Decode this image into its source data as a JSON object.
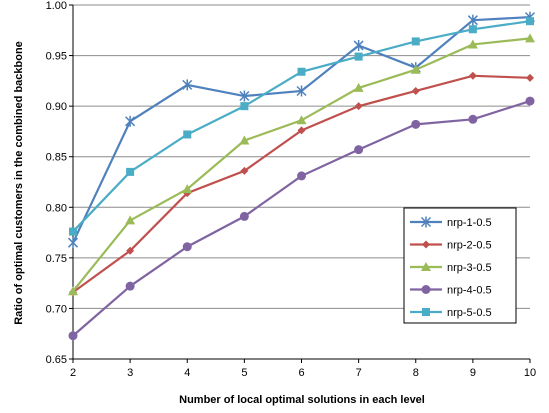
{
  "chart_data": {
    "type": "line",
    "title": "",
    "xlabel": "Number of local optimal solutions in each level",
    "ylabel": "Ratio of optimal customers in the combined backbone",
    "x": [
      2,
      3,
      4,
      5,
      6,
      7,
      8,
      9,
      10
    ],
    "x_tick_labels": [
      "2",
      "3",
      "4",
      "5",
      "6",
      "7",
      "8",
      "9",
      "10"
    ],
    "xlim": [
      2,
      10
    ],
    "ylim": [
      0.65,
      1.0
    ],
    "y_ticks": [
      0.65,
      0.7,
      0.75,
      0.8,
      0.85,
      0.9,
      0.95,
      1.0
    ],
    "y_tick_labels": [
      "0.65",
      "0.70",
      "0.75",
      "0.80",
      "0.85",
      "0.90",
      "0.95",
      "1.00"
    ],
    "grid": "horizontal",
    "legend_position": "bottom-right",
    "series": [
      {
        "name": "nrp-1-0.5",
        "color": "#4F81BD",
        "marker": "star",
        "values": [
          0.765,
          0.885,
          0.921,
          0.91,
          0.915,
          0.96,
          0.938,
          0.985,
          0.988
        ]
      },
      {
        "name": "nrp-2-0.5",
        "color": "#C0504D",
        "marker": "diamond",
        "values": [
          0.716,
          0.757,
          0.814,
          0.836,
          0.876,
          0.9,
          0.915,
          0.93,
          0.928
        ]
      },
      {
        "name": "nrp-3-0.5",
        "color": "#9BBB59",
        "marker": "triangle",
        "values": [
          0.717,
          0.787,
          0.818,
          0.866,
          0.886,
          0.918,
          0.936,
          0.961,
          0.967
        ]
      },
      {
        "name": "nrp-4-0.5",
        "color": "#8064A2",
        "marker": "circle",
        "values": [
          0.673,
          0.722,
          0.761,
          0.791,
          0.831,
          0.857,
          0.882,
          0.887,
          0.905
        ]
      },
      {
        "name": "nrp-5-0.5",
        "color": "#4BACC6",
        "marker": "square",
        "values": [
          0.776,
          0.835,
          0.872,
          0.9,
          0.934,
          0.949,
          0.964,
          0.976,
          0.984
        ]
      }
    ]
  }
}
